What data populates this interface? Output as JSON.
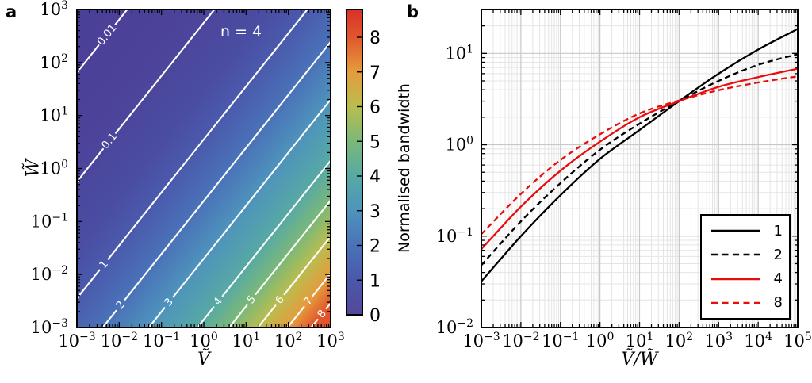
{
  "figure": {
    "panels": {
      "a": {
        "letter": "a",
        "annotation": "n = 4",
        "xlabel": "Ṽ",
        "ylabel": "W̃",
        "x_ticks": [
          "10^−3",
          "10^−2",
          "10^−1",
          "10^0",
          "10^1",
          "10^2",
          "10^3"
        ],
        "y_ticks": [
          "10^−3",
          "10^−2",
          "10^−1",
          "10^0",
          "10^1",
          "10^2",
          "10^3"
        ]
      },
      "b": {
        "letter": "b",
        "xlabel": "Ṽ/W̃",
        "ylabel": "Normalised bandwidth",
        "x_ticks": [
          "10^−3",
          "10^−2",
          "10^−1",
          "10^0",
          "10^1",
          "10^2",
          "10^3",
          "10^4",
          "10^5"
        ],
        "y_ticks": [
          "10^−2",
          "10^−1",
          "10^0",
          "10^1"
        ]
      }
    }
  },
  "chart_data": [
    {
      "panel": "a",
      "type": "heatmap",
      "scale": "log-log filled contour of normalised bandwidth vs Ṽ and W̃",
      "xlabel": "Ṽ",
      "ylabel": "W̃",
      "xlim": [
        0.001,
        1000
      ],
      "ylim": [
        0.001,
        1000
      ],
      "annotation": "n = 4",
      "contour_levels": [
        0.01,
        0.1,
        1,
        2,
        3,
        4,
        5,
        6,
        7,
        8
      ],
      "contours": [
        {
          "value": "0.01",
          "u": -4.81,
          "label_x": 135,
          "gap": 17
        },
        {
          "value": "0.1",
          "u": -2.75,
          "label_x": 138,
          "gap": 13
        },
        {
          "value": "1",
          "u": -0.55,
          "label_x": 131,
          "gap": 9
        },
        {
          "value": "2",
          "u": 0.61,
          "label_x": 152,
          "gap": 9
        },
        {
          "value": "3",
          "u": 1.7,
          "label_x": 213,
          "gap": 9
        },
        {
          "value": "4",
          "u": 2.85,
          "label_x": 275,
          "gap": 9
        },
        {
          "value": "5",
          "u": 3.6,
          "label_x": 317,
          "gap": 9
        },
        {
          "value": "6",
          "u": 4.28,
          "label_x": 353,
          "gap": 9
        },
        {
          "value": "7",
          "u": 4.98,
          "label_x": 389,
          "gap": 9
        },
        {
          "value": "8",
          "u": 5.54,
          "label_x": 406,
          "gap": 9
        }
      ],
      "field_gradient": [
        {
          "u": -6.0,
          "color": "#4B3F97"
        },
        {
          "u": -3.5,
          "color": "#4C4299"
        },
        {
          "u": -1.5,
          "color": "#4A4DA2"
        },
        {
          "u": -0.55,
          "color": "#4A5AAC"
        },
        {
          "u": 0.61,
          "color": "#4A72B8"
        },
        {
          "u": 1.7,
          "color": "#4E93BC"
        },
        {
          "u": 2.85,
          "color": "#57A9A4"
        },
        {
          "u": 3.6,
          "color": "#7BB878"
        },
        {
          "u": 4.28,
          "color": "#B9BD4F"
        },
        {
          "u": 4.98,
          "color": "#E49C3D"
        },
        {
          "u": 5.54,
          "color": "#E1572D"
        },
        {
          "u": 6.0,
          "color": "#E2512B"
        }
      ],
      "colorbar": {
        "min": 0,
        "max": 8.8,
        "tick_labels": [
          "0",
          "1",
          "2",
          "3",
          "4",
          "5",
          "6",
          "7",
          "8"
        ],
        "colormap": [
          {
            "v": 0.0,
            "color": "#54489B"
          },
          {
            "v": 1.0,
            "color": "#4A58AA"
          },
          {
            "v": 2.0,
            "color": "#4A72B8"
          },
          {
            "v": 3.0,
            "color": "#4E93BC"
          },
          {
            "v": 4.0,
            "color": "#57A9A4"
          },
          {
            "v": 5.0,
            "color": "#7BB878"
          },
          {
            "v": 6.0,
            "color": "#B9BD4F"
          },
          {
            "v": 7.0,
            "color": "#E49C3D"
          },
          {
            "v": 8.0,
            "color": "#E1572D"
          },
          {
            "v": 8.8,
            "color": "#D93127"
          }
        ]
      }
    },
    {
      "panel": "b",
      "type": "line",
      "xlabel": "Ṽ/W̃",
      "ylabel": "Normalised bandwidth",
      "xlim": [
        0.001,
        100000
      ],
      "ylim": [
        0.01,
        30
      ],
      "scale": "log-log",
      "grid": true,
      "x": [
        0.001,
        0.01,
        0.1,
        1,
        10,
        100,
        1000,
        10000,
        100000
      ],
      "series": [
        {
          "label": "1",
          "color": "#000000",
          "style": "solid",
          "values": [
            0.032,
            0.1,
            0.28,
            0.7,
            1.45,
            3.0,
            6.0,
            11.0,
            18.5
          ]
        },
        {
          "label": "2",
          "color": "#000000",
          "style": "dashed",
          "values": [
            0.048,
            0.145,
            0.38,
            0.88,
            1.7,
            3.0,
            5.0,
            7.5,
            9.8
          ]
        },
        {
          "label": "4",
          "color": "#E80C0C",
          "style": "solid",
          "values": [
            0.072,
            0.21,
            0.52,
            1.08,
            2.0,
            3.0,
            4.3,
            5.5,
            6.8
          ]
        },
        {
          "label": "8",
          "color": "#E80C0C",
          "style": "dashed",
          "values": [
            0.105,
            0.29,
            0.68,
            1.3,
            2.2,
            3.05,
            3.95,
            4.8,
            5.6
          ]
        }
      ],
      "legend": {
        "position": "lower right",
        "entries": [
          "1",
          "2",
          "4",
          "8"
        ]
      }
    }
  ]
}
